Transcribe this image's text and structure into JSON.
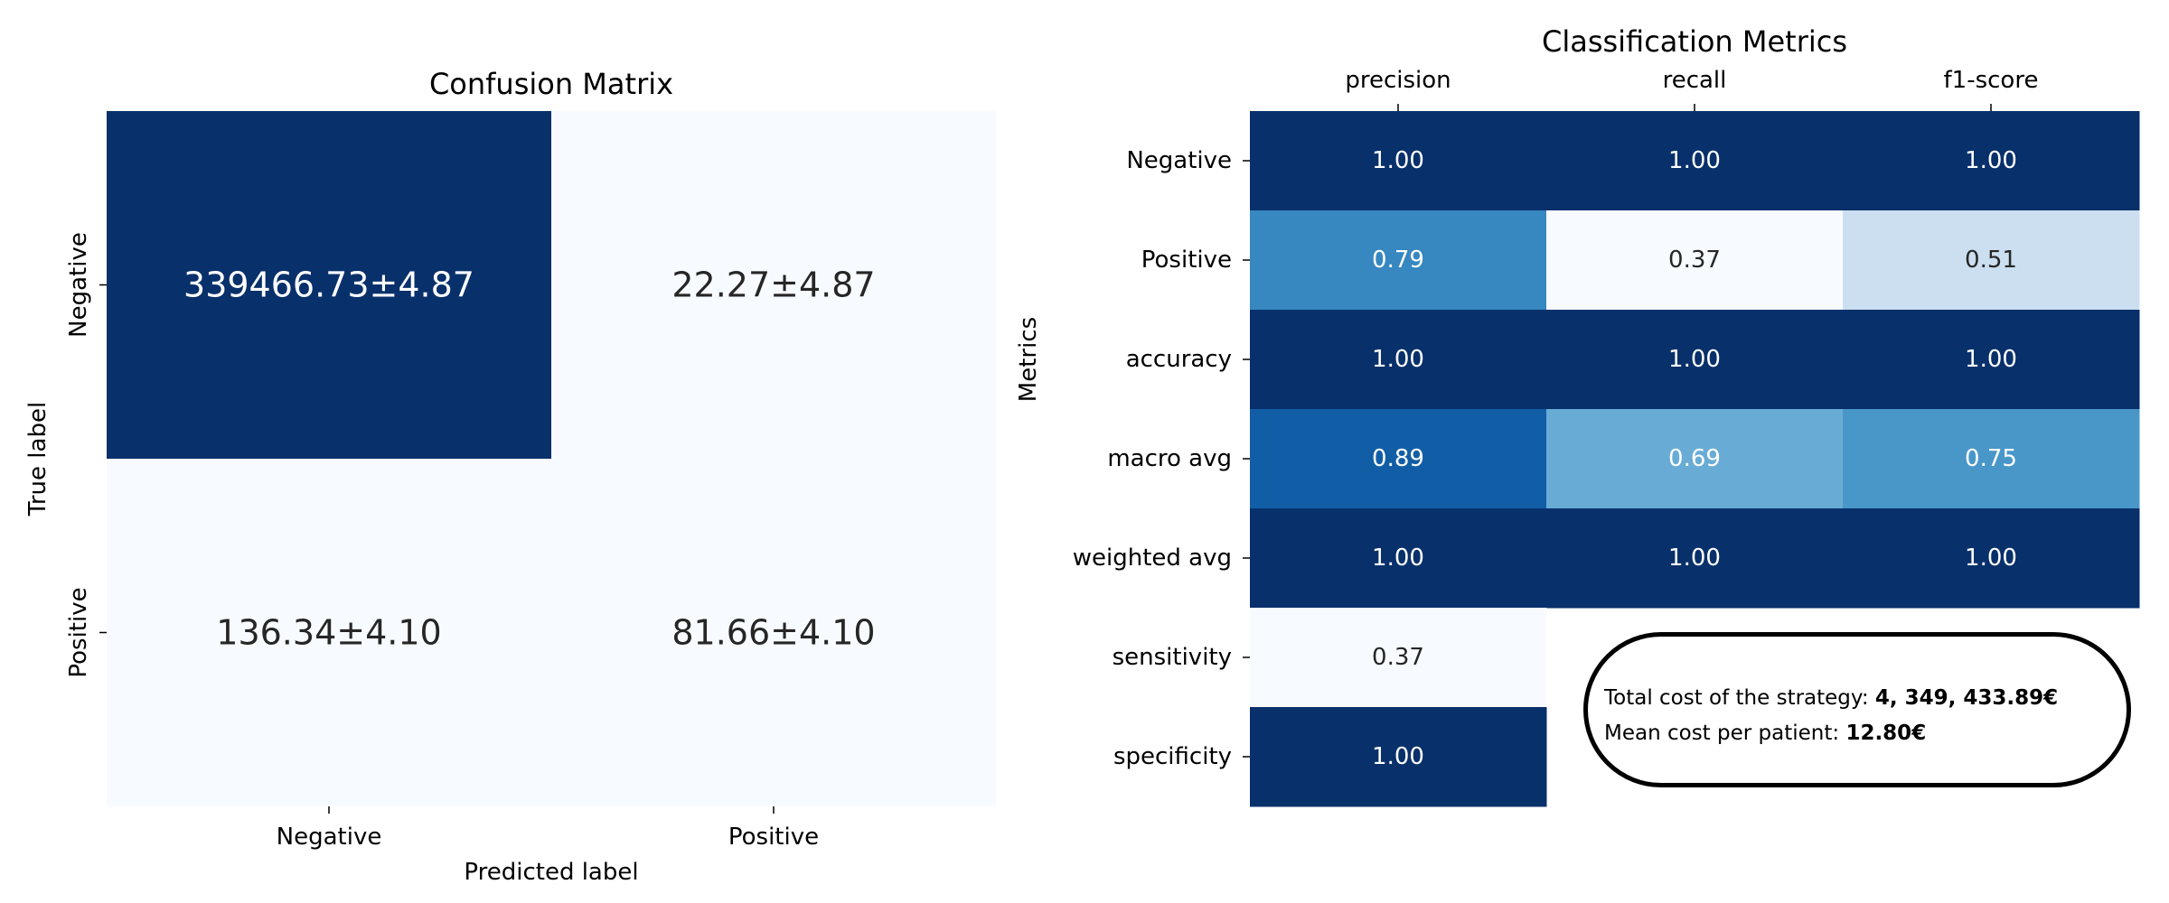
{
  "charts": [
    {
      "type": "heatmap",
      "title": "Confusion Matrix",
      "xlabel": "Predicted label",
      "ylabel": "True label",
      "x_categories": [
        "Negative",
        "Positive"
      ],
      "y_categories": [
        "Negative",
        "Positive"
      ],
      "colormap": "Blues",
      "cells": [
        [
          "339466.73±4.87",
          "22.27±4.87"
        ],
        [
          "136.34±4.10",
          "81.66±4.10"
        ]
      ],
      "intensity": [
        [
          1.0,
          0.0
        ],
        [
          0.0,
          0.0
        ]
      ]
    },
    {
      "type": "heatmap",
      "title": "Classification Metrics",
      "xlabel": "",
      "ylabel": "Metrics",
      "x_categories": [
        "precision",
        "recall",
        "f1-score"
      ],
      "y_categories": [
        "Negative",
        "Positive",
        "accuracy",
        "macro avg",
        "weighted avg",
        "sensitivity",
        "specificity"
      ],
      "colormap": "Blues",
      "values": [
        [
          1.0,
          1.0,
          1.0
        ],
        [
          0.79,
          0.37,
          0.51
        ],
        [
          1.0,
          1.0,
          1.0
        ],
        [
          0.89,
          0.69,
          0.75
        ],
        [
          1.0,
          1.0,
          1.0
        ],
        [
          0.37,
          null,
          null
        ],
        [
          1.0,
          null,
          null
        ]
      ],
      "vmin": 0.37,
      "vmax": 1.0
    }
  ],
  "cost_box": {
    "total_label": "Total cost of the strategy: ",
    "total_value": "4, 349, 433.89€",
    "mean_label": "Mean cost per patient:  ",
    "mean_value": "12.80€"
  }
}
